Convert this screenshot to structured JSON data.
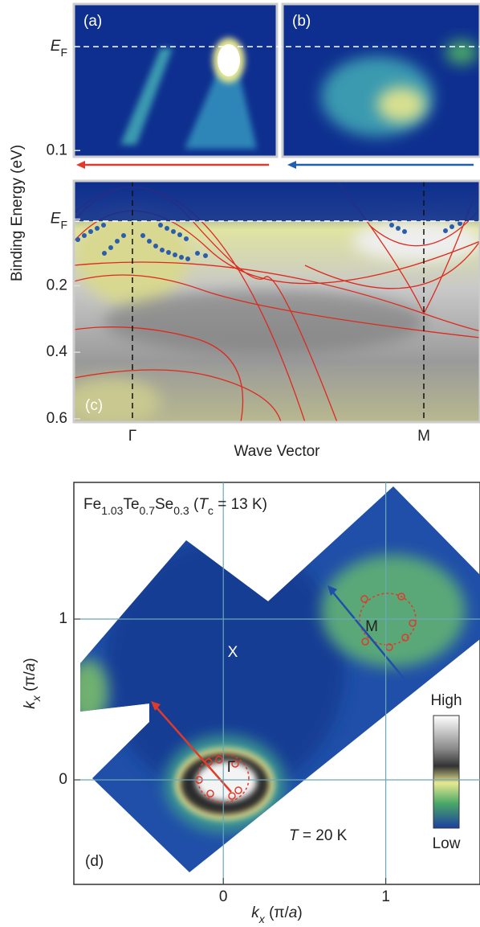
{
  "chart_data": [
    {
      "type": "heatmap",
      "label": "(a)",
      "ylim": [
        -0.041,
        0.106
      ],
      "yticks": [
        {
          "value": 0,
          "label": "E",
          "sub": "F"
        },
        0.1
      ]
    },
    {
      "type": "heatmap",
      "label": "(b)"
    },
    {
      "type": "heatmap",
      "label": "(c)",
      "ylabel": "Binding Energy (eV)",
      "xlabel": "Wave Vector",
      "categories": [
        "Γ",
        "M"
      ],
      "ylim": [
        -0.115,
        0.61
      ],
      "yticks": [
        {
          "value": 0,
          "label": "E",
          "sub": "F"
        },
        0.2,
        0.4,
        0.6
      ]
    },
    {
      "type": "heatmap",
      "label": "(d)",
      "title_parts": [
        "Fe",
        "1.03",
        "Te",
        "0.7",
        "Se",
        "0.3",
        " (",
        "T",
        "c",
        " = 13 K)"
      ],
      "annotations": [
        "X",
        "M",
        "Γ",
        "T",
        " = 20 K"
      ],
      "colorbar": [
        "High",
        "Low"
      ],
      "xlabel_parts": [
        "k",
        "x",
        " (π/",
        "a",
        ")"
      ],
      "ylabel_parts": [
        "k",
        "x",
        " (π/",
        "a",
        ")"
      ],
      "xlim": [
        -0.92,
        1.58
      ],
      "ylim": [
        -0.65,
        1.85
      ],
      "xticks": [
        0,
        1
      ],
      "yticks": [
        0,
        1
      ],
      "grid": true
    }
  ]
}
